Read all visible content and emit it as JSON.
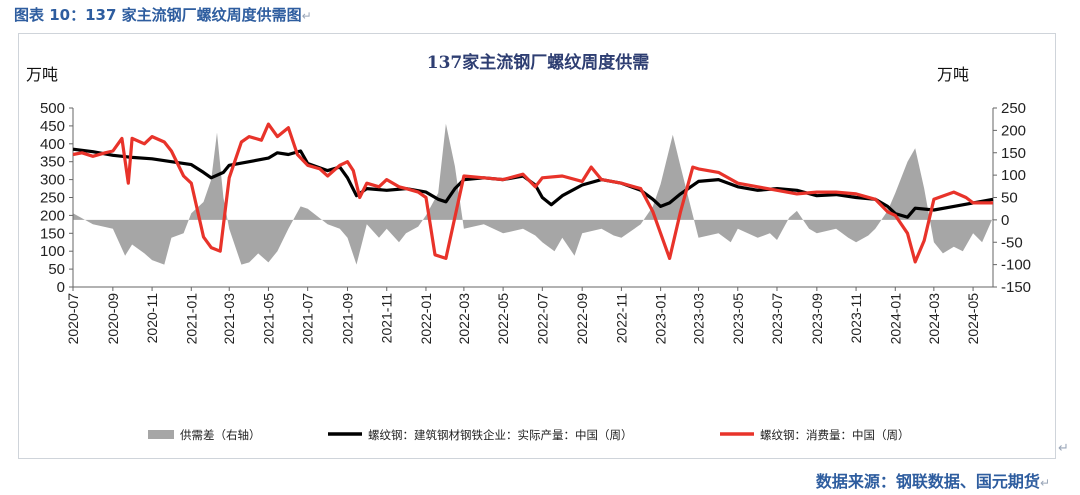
{
  "page": {
    "title": "图表 10：137 家主流钢厂螺纹周度供需图",
    "source": "数据来源：钢联数据、国元期货"
  },
  "chart_data": {
    "type": "line",
    "title": "137家主流钢厂螺纹周度供需",
    "ylabel_left": "万吨",
    "ylabel_right": "万吨",
    "ylim_left": [
      0,
      500
    ],
    "yticks_left": [
      0,
      50,
      100,
      150,
      200,
      250,
      300,
      350,
      400,
      450,
      500
    ],
    "ylim_right": [
      -150,
      250
    ],
    "yticks_right": [
      -150,
      -100,
      -50,
      0,
      50,
      100,
      150,
      200,
      250
    ],
    "xticks": [
      "2020-07",
      "2020-09",
      "2020-11",
      "2021-01",
      "2021-03",
      "2021-05",
      "2021-07",
      "2021-09",
      "2021-11",
      "2022-01",
      "2022-03",
      "2022-05",
      "2022-07",
      "2022-09",
      "2022-11",
      "2023-01",
      "2023-03",
      "2023-05",
      "2023-07",
      "2023-09",
      "2023-11",
      "2024-01",
      "2024-03",
      "2024-05"
    ],
    "x_start": "2020-07",
    "x_end": "2024-06",
    "grid": false,
    "legend_position": "bottom",
    "series": [
      {
        "name": "供需差（右轴）",
        "type": "area",
        "axis": "right",
        "color": "#a6a6a6",
        "points": [
          [
            "2020-07",
            15
          ],
          [
            "2020-08",
            -10
          ],
          [
            "2020-09",
            -20
          ],
          [
            "2020-09-20",
            -80
          ],
          [
            "2020-10",
            -55
          ],
          [
            "2020-10-20",
            -75
          ],
          [
            "2020-11",
            -90
          ],
          [
            "2020-11-20",
            -100
          ],
          [
            "2020-12",
            -40
          ],
          [
            "2020-12-20",
            -30
          ],
          [
            "2021-01",
            15
          ],
          [
            "2021-01-20",
            40
          ],
          [
            "2021-02",
            90
          ],
          [
            "2021-02-10",
            195
          ],
          [
            "2021-02-20",
            50
          ],
          [
            "2021-03",
            -20
          ],
          [
            "2021-03-20",
            -100
          ],
          [
            "2021-04",
            -95
          ],
          [
            "2021-04-15",
            -75
          ],
          [
            "2021-05",
            -95
          ],
          [
            "2021-05-15",
            -70
          ],
          [
            "2021-06",
            -20
          ],
          [
            "2021-06-20",
            30
          ],
          [
            "2021-07",
            25
          ],
          [
            "2021-08",
            -10
          ],
          [
            "2021-08-20",
            -20
          ],
          [
            "2021-09",
            -40
          ],
          [
            "2021-09-15",
            -100
          ],
          [
            "2021-10",
            -10
          ],
          [
            "2021-10-20",
            -40
          ],
          [
            "2021-11",
            -20
          ],
          [
            "2021-11-20",
            -50
          ],
          [
            "2021-12",
            -30
          ],
          [
            "2021-12-20",
            -15
          ],
          [
            "2022-01",
            10
          ],
          [
            "2022-01-20",
            60
          ],
          [
            "2022-02",
            215
          ],
          [
            "2022-02-15",
            120
          ],
          [
            "2022-03",
            -20
          ],
          [
            "2022-04",
            -10
          ],
          [
            "2022-05",
            -30
          ],
          [
            "2022-06",
            -20
          ],
          [
            "2022-06-20",
            -35
          ],
          [
            "2022-07",
            -50
          ],
          [
            "2022-07-20",
            -70
          ],
          [
            "2022-08",
            -40
          ],
          [
            "2022-08-20",
            -80
          ],
          [
            "2022-09",
            -30
          ],
          [
            "2022-10",
            -20
          ],
          [
            "2022-10-20",
            -35
          ],
          [
            "2022-11",
            -40
          ],
          [
            "2022-12",
            -10
          ],
          [
            "2022-12-20",
            30
          ],
          [
            "2023-01",
            80
          ],
          [
            "2023-01-20",
            190
          ],
          [
            "2023-02",
            120
          ],
          [
            "2023-02-15",
            40
          ],
          [
            "2023-03",
            -40
          ],
          [
            "2023-04",
            -30
          ],
          [
            "2023-04-20",
            -50
          ],
          [
            "2023-05",
            -20
          ],
          [
            "2023-06",
            -40
          ],
          [
            "2023-06-20",
            -30
          ],
          [
            "2023-07",
            -45
          ],
          [
            "2023-07-20",
            5
          ],
          [
            "2023-08",
            20
          ],
          [
            "2023-08-20",
            -20
          ],
          [
            "2023-09",
            -30
          ],
          [
            "2023-10",
            -20
          ],
          [
            "2023-10-20",
            -40
          ],
          [
            "2023-11",
            -50
          ],
          [
            "2023-11-20",
            -35
          ],
          [
            "2023-12",
            -20
          ],
          [
            "2023-12-20",
            20
          ],
          [
            "2024-01",
            60
          ],
          [
            "2024-01-20",
            130
          ],
          [
            "2024-02",
            160
          ],
          [
            "2024-02-15",
            70
          ],
          [
            "2024-03",
            -50
          ],
          [
            "2024-03-15",
            -75
          ],
          [
            "2024-04",
            -60
          ],
          [
            "2024-04-15",
            -70
          ],
          [
            "2024-05",
            -30
          ],
          [
            "2024-05-15",
            -50
          ],
          [
            "2024-06",
            5
          ]
        ]
      },
      {
        "name": "螺纹钢：建筑钢材钢铁企业：实际产量：中国（周）",
        "type": "line",
        "axis": "left",
        "color": "#000000",
        "points": [
          [
            "2020-07",
            385
          ],
          [
            "2020-08",
            378
          ],
          [
            "2020-09",
            368
          ],
          [
            "2020-10",
            362
          ],
          [
            "2020-11",
            358
          ],
          [
            "2020-12",
            350
          ],
          [
            "2021-01",
            342
          ],
          [
            "2021-01-20",
            320
          ],
          [
            "2021-02",
            305
          ],
          [
            "2021-02-20",
            320
          ],
          [
            "2021-03",
            340
          ],
          [
            "2021-04",
            350
          ],
          [
            "2021-05",
            360
          ],
          [
            "2021-05-15",
            375
          ],
          [
            "2021-06",
            370
          ],
          [
            "2021-06-20",
            380
          ],
          [
            "2021-07",
            345
          ],
          [
            "2021-08",
            325
          ],
          [
            "2021-08-20",
            335
          ],
          [
            "2021-09",
            305
          ],
          [
            "2021-09-15",
            255
          ],
          [
            "2021-10",
            275
          ],
          [
            "2021-11",
            270
          ],
          [
            "2021-12",
            275
          ],
          [
            "2022-01",
            265
          ],
          [
            "2022-01-20",
            245
          ],
          [
            "2022-02",
            238
          ],
          [
            "2022-02-15",
            275
          ],
          [
            "2022-03",
            300
          ],
          [
            "2022-04",
            305
          ],
          [
            "2022-05",
            300
          ],
          [
            "2022-06",
            310
          ],
          [
            "2022-06-20",
            285
          ],
          [
            "2022-07",
            250
          ],
          [
            "2022-07-15",
            230
          ],
          [
            "2022-08",
            255
          ],
          [
            "2022-09",
            285
          ],
          [
            "2022-10",
            300
          ],
          [
            "2022-11",
            290
          ],
          [
            "2022-12",
            270
          ],
          [
            "2022-12-20",
            245
          ],
          [
            "2023-01",
            225
          ],
          [
            "2023-01-15",
            235
          ],
          [
            "2023-02",
            260
          ],
          [
            "2023-03",
            295
          ],
          [
            "2023-04",
            300
          ],
          [
            "2023-05",
            280
          ],
          [
            "2023-06",
            270
          ],
          [
            "2023-07",
            275
          ],
          [
            "2023-08",
            270
          ],
          [
            "2023-09",
            255
          ],
          [
            "2023-10",
            258
          ],
          [
            "2023-11",
            250
          ],
          [
            "2023-12",
            245
          ],
          [
            "2023-12-20",
            225
          ],
          [
            "2024-01",
            205
          ],
          [
            "2024-01-20",
            195
          ],
          [
            "2024-02",
            220
          ],
          [
            "2024-03",
            215
          ],
          [
            "2024-04",
            225
          ],
          [
            "2024-05",
            235
          ],
          [
            "2024-06",
            245
          ]
        ]
      },
      {
        "name": "螺纹钢：消费量：中国（周）",
        "type": "line",
        "axis": "left",
        "color": "#e8332a",
        "points": [
          [
            "2020-07",
            370
          ],
          [
            "2020-07-15",
            375
          ],
          [
            "2020-08",
            365
          ],
          [
            "2020-08-20",
            375
          ],
          [
            "2020-09",
            380
          ],
          [
            "2020-09-15",
            415
          ],
          [
            "2020-09-25",
            290
          ],
          [
            "2020-10",
            415
          ],
          [
            "2020-10-20",
            400
          ],
          [
            "2020-11",
            420
          ],
          [
            "2020-11-20",
            405
          ],
          [
            "2020-12",
            380
          ],
          [
            "2020-12-20",
            310
          ],
          [
            "2021-01",
            290
          ],
          [
            "2021-01-20",
            140
          ],
          [
            "2021-02",
            110
          ],
          [
            "2021-02-15",
            100
          ],
          [
            "2021-03",
            305
          ],
          [
            "2021-03-20",
            405
          ],
          [
            "2021-04",
            420
          ],
          [
            "2021-04-20",
            410
          ],
          [
            "2021-05",
            455
          ],
          [
            "2021-05-15",
            420
          ],
          [
            "2021-06",
            445
          ],
          [
            "2021-06-15",
            370
          ],
          [
            "2021-07",
            340
          ],
          [
            "2021-07-20",
            330
          ],
          [
            "2021-08",
            310
          ],
          [
            "2021-08-20",
            340
          ],
          [
            "2021-09",
            350
          ],
          [
            "2021-09-10",
            325
          ],
          [
            "2021-09-20",
            250
          ],
          [
            "2021-10",
            290
          ],
          [
            "2021-10-20",
            280
          ],
          [
            "2021-11",
            300
          ],
          [
            "2021-11-20",
            280
          ],
          [
            "2021-12",
            275
          ],
          [
            "2021-12-20",
            265
          ],
          [
            "2022-01",
            250
          ],
          [
            "2022-01-15",
            90
          ],
          [
            "2022-02",
            80
          ],
          [
            "2022-02-15",
            195
          ],
          [
            "2022-03",
            310
          ],
          [
            "2022-04",
            305
          ],
          [
            "2022-05",
            300
          ],
          [
            "2022-06",
            315
          ],
          [
            "2022-06-20",
            280
          ],
          [
            "2022-07",
            305
          ],
          [
            "2022-08",
            310
          ],
          [
            "2022-09",
            295
          ],
          [
            "2022-09-15",
            335
          ],
          [
            "2022-10",
            300
          ],
          [
            "2022-11",
            290
          ],
          [
            "2022-12",
            275
          ],
          [
            "2022-12-20",
            210
          ],
          [
            "2023-01",
            150
          ],
          [
            "2023-01-15",
            80
          ],
          [
            "2023-02",
            210
          ],
          [
            "2023-02-20",
            335
          ],
          [
            "2023-03",
            330
          ],
          [
            "2023-04",
            320
          ],
          [
            "2023-05",
            290
          ],
          [
            "2023-06",
            280
          ],
          [
            "2023-07",
            270
          ],
          [
            "2023-08",
            260
          ],
          [
            "2023-09",
            265
          ],
          [
            "2023-10",
            265
          ],
          [
            "2023-11",
            260
          ],
          [
            "2023-12",
            245
          ],
          [
            "2023-12-20",
            210
          ],
          [
            "2024-01",
            200
          ],
          [
            "2024-01-20",
            150
          ],
          [
            "2024-02",
            70
          ],
          [
            "2024-02-15",
            130
          ],
          [
            "2024-03",
            245
          ],
          [
            "2024-04",
            265
          ],
          [
            "2024-04-20",
            250
          ],
          [
            "2024-05",
            235
          ],
          [
            "2024-06",
            235
          ]
        ]
      }
    ]
  }
}
